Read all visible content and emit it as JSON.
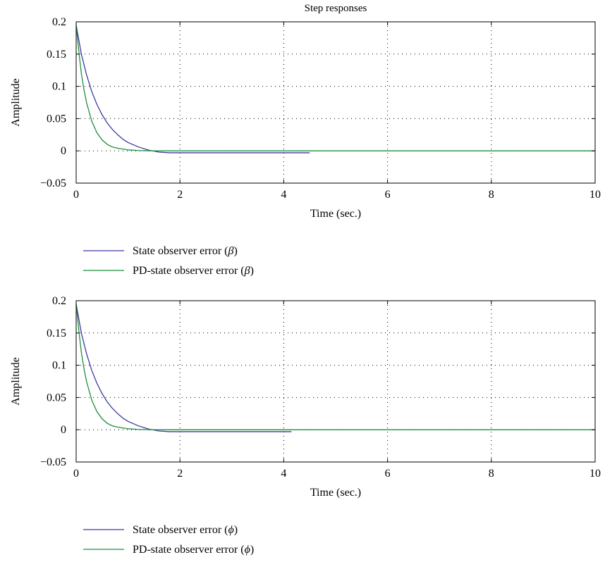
{
  "chart_data": [
    {
      "type": "line",
      "title": "Step responses",
      "xlabel": "Time (sec.)",
      "ylabel": "Amplitude",
      "xlim": [
        0,
        10
      ],
      "ylim": [
        -0.05,
        0.2
      ],
      "xticks": [
        0,
        2,
        4,
        6,
        8,
        10
      ],
      "xtick_labels": [
        "0",
        "2",
        "4",
        "6",
        "8",
        "10"
      ],
      "yticks": [
        -0.05,
        0,
        0.05,
        0.1,
        0.15,
        0.2
      ],
      "ytick_labels": [
        "−0.05",
        "0",
        "0.05",
        "0.1",
        "0.15",
        "0.2"
      ],
      "grid": true,
      "legend_position": "below",
      "series": [
        {
          "name": "State observer error (β)",
          "legend_prefix": "State observer error (",
          "legend_symbol": "β",
          "legend_suffix": ")",
          "color": "#3a3aa0",
          "x": [
            0,
            0.1,
            0.2,
            0.3,
            0.4,
            0.5,
            0.6,
            0.7,
            0.8,
            0.9,
            1.0,
            1.2,
            1.4,
            1.6,
            1.8,
            2.0,
            2.5,
            3.0,
            3.5,
            4.0,
            4.5
          ],
          "y": [
            0.195,
            0.15,
            0.118,
            0.092,
            0.072,
            0.056,
            0.043,
            0.033,
            0.025,
            0.018,
            0.013,
            0.006,
            0.001,
            -0.002,
            -0.003,
            -0.003,
            -0.003,
            -0.003,
            -0.003,
            -0.003,
            -0.003
          ]
        },
        {
          "name": "PD-state observer error (β)",
          "legend_prefix": "PD-state observer error (",
          "legend_symbol": "β",
          "legend_suffix": ")",
          "color": "#1f8f3a",
          "x": [
            0,
            0.05,
            0.1,
            0.15,
            0.2,
            0.3,
            0.4,
            0.5,
            0.6,
            0.7,
            0.8,
            1.0,
            1.2,
            1.5,
            2.0,
            3.0,
            5.0,
            10.0
          ],
          "y": [
            0.195,
            0.155,
            0.12,
            0.095,
            0.075,
            0.046,
            0.028,
            0.017,
            0.01,
            0.006,
            0.004,
            0.0015,
            0.0005,
            0,
            0,
            0,
            0,
            0
          ]
        }
      ]
    },
    {
      "type": "line",
      "title": "",
      "xlabel": "Time (sec.)",
      "ylabel": "Amplitude",
      "xlim": [
        0,
        10
      ],
      "ylim": [
        -0.05,
        0.2
      ],
      "xticks": [
        0,
        2,
        4,
        6,
        8,
        10
      ],
      "xtick_labels": [
        "0",
        "2",
        "4",
        "6",
        "8",
        "10"
      ],
      "yticks": [
        -0.05,
        0,
        0.05,
        0.1,
        0.15,
        0.2
      ],
      "ytick_labels": [
        "−0.05",
        "0",
        "0.05",
        "0.1",
        "0.15",
        "0.2"
      ],
      "grid": true,
      "legend_position": "below",
      "series": [
        {
          "name": "State observer error (ϕ)",
          "legend_prefix": "State observer error (",
          "legend_symbol": "ϕ",
          "legend_suffix": ")",
          "color": "#3a3aa0",
          "x": [
            0,
            0.1,
            0.2,
            0.3,
            0.4,
            0.5,
            0.6,
            0.7,
            0.8,
            0.9,
            1.0,
            1.2,
            1.4,
            1.6,
            1.8,
            2.0,
            2.5,
            3.0,
            3.5,
            4.15
          ],
          "y": [
            0.195,
            0.15,
            0.118,
            0.092,
            0.072,
            0.056,
            0.043,
            0.033,
            0.025,
            0.018,
            0.013,
            0.006,
            0.001,
            -0.002,
            -0.003,
            -0.003,
            -0.003,
            -0.003,
            -0.003,
            -0.003
          ]
        },
        {
          "name": "PD-state observer error (ϕ)",
          "legend_prefix": "PD-state observer error (",
          "legend_symbol": "ϕ",
          "legend_suffix": ")",
          "color": "#1f8f3a",
          "x": [
            0,
            0.05,
            0.1,
            0.15,
            0.2,
            0.3,
            0.4,
            0.5,
            0.6,
            0.7,
            0.8,
            1.0,
            1.2,
            1.5,
            2.0,
            3.0,
            5.0,
            10.0
          ],
          "y": [
            0.195,
            0.155,
            0.12,
            0.095,
            0.075,
            0.046,
            0.028,
            0.017,
            0.01,
            0.006,
            0.004,
            0.0015,
            0.0005,
            0,
            0,
            0,
            0,
            0
          ]
        }
      ]
    }
  ]
}
